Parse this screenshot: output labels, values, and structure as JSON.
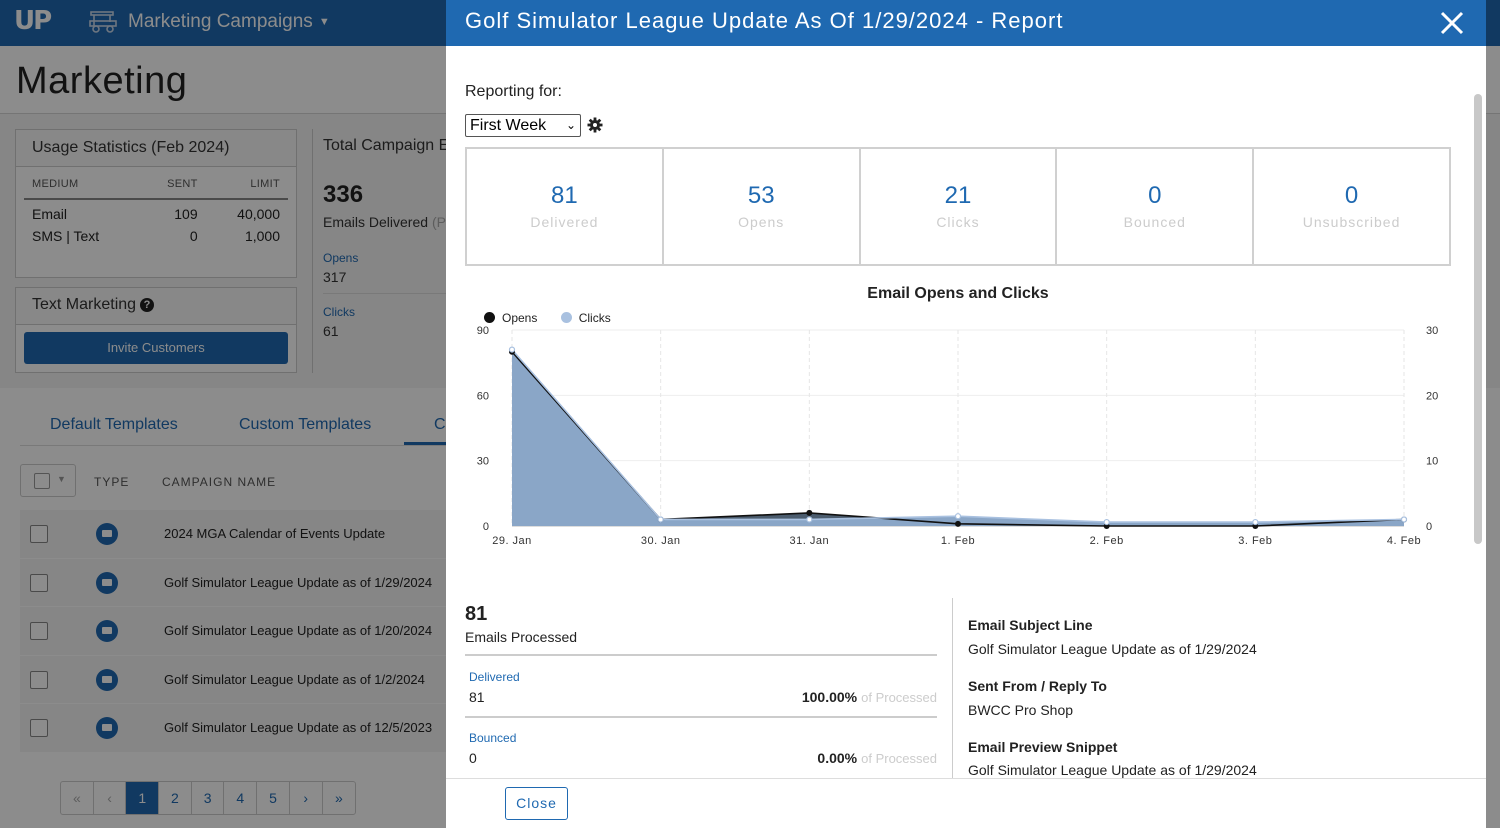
{
  "app": {
    "logo": "UP",
    "title": "Marketing Campaigns",
    "page_title": "Marketing"
  },
  "usage": {
    "title": "Usage Statistics (Feb 2024)",
    "headers": [
      "MEDIUM",
      "SENT",
      "LIMIT"
    ],
    "rows": [
      {
        "medium": "Email",
        "sent": "109",
        "limit": "40,000"
      },
      {
        "medium": "SMS | Text",
        "sent": "0",
        "limit": "1,000"
      }
    ]
  },
  "text_marketing": {
    "title": "Text Marketing",
    "invite_label": "Invite Customers"
  },
  "total": {
    "title": "Total Campaign E",
    "big": "336",
    "sub": "Emails Delivered",
    "sub_suffix": "(P",
    "opens_label": "Opens",
    "opens_value": "317",
    "clicks_label": "Clicks",
    "clicks_value": "61"
  },
  "tabs": [
    "Default Templates",
    "Custom Templates",
    "C"
  ],
  "table": {
    "headers": [
      "TYPE",
      "CAMPAIGN NAME"
    ],
    "rows": [
      "2024 MGA Calendar of Events Update",
      "Golf Simulator League Update as of 1/29/2024",
      "Golf Simulator League Update as of 1/20/2024",
      "Golf Simulator League Update as of 1/2/2024",
      "Golf Simulator League Update as of 12/5/2023"
    ]
  },
  "pager": [
    "«",
    "‹",
    "1",
    "2",
    "3",
    "4",
    "5",
    "›",
    "»"
  ],
  "modal": {
    "title": "Golf Simulator League Update As Of 1/29/2024 - Report",
    "reporting_label": "Reporting for:",
    "reporting_value": "First Week",
    "stats": [
      {
        "value": "81",
        "label": "Delivered"
      },
      {
        "value": "53",
        "label": "Opens"
      },
      {
        "value": "21",
        "label": "Clicks"
      },
      {
        "value": "0",
        "label": "Bounced"
      },
      {
        "value": "0",
        "label": "Unsubscribed"
      }
    ],
    "processed": {
      "value": "81",
      "label": "Emails Processed",
      "delivered_label": "Delivered",
      "delivered_value": "81",
      "delivered_pct": "100.00%",
      "bounced_label": "Bounced",
      "bounced_value": "0",
      "bounced_pct": "0.00%",
      "of_processed": "of Processed"
    },
    "info": {
      "subject_h": "Email Subject Line",
      "subject_v": "Golf Simulator League Update as of 1/29/2024",
      "from_h": "Sent From / Reply To",
      "from_v": "BWCC Pro Shop",
      "preview_h": "Email Preview Snippet",
      "preview_v": "Golf Simulator League Update as of 1/29/2024"
    },
    "close_label": "Close"
  },
  "colors": {
    "brand": "#1f69b1",
    "opens": "#111111",
    "clicks": "#a9c1e0",
    "area": "#8aa6c7"
  },
  "chart_data": {
    "type": "area",
    "title": "Email Opens and Clicks",
    "categories": [
      "29. Jan",
      "30. Jan",
      "31. Jan",
      "1. Feb",
      "2. Feb",
      "3. Feb",
      "4. Feb"
    ],
    "series": [
      {
        "name": "Opens",
        "axis": "left",
        "values": [
          80,
          3,
          6,
          1,
          0,
          0,
          3
        ]
      },
      {
        "name": "Clicks",
        "axis": "right",
        "values": [
          27,
          1,
          1,
          1.5,
          0.6,
          0.6,
          1
        ]
      }
    ],
    "y_left": {
      "min": 0,
      "max": 90,
      "ticks": [
        0,
        30,
        60,
        90
      ]
    },
    "y_right": {
      "min": 0,
      "max": 30,
      "ticks": [
        0,
        10,
        20,
        30
      ]
    },
    "legend": "top-left",
    "grid": true
  }
}
